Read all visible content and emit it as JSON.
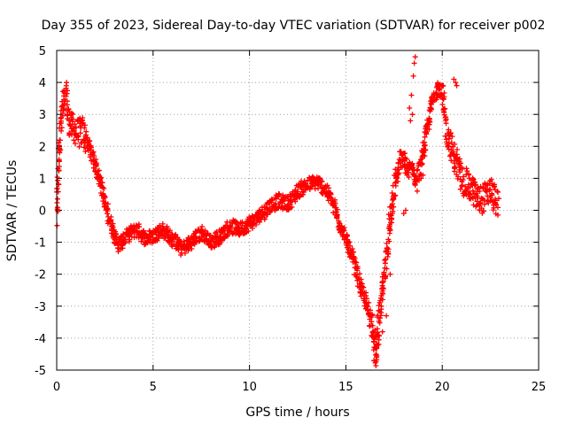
{
  "chart_data": {
    "type": "scatter",
    "title": "Day 355 of 2023, Sidereal Day-to-day VTEC variation (SDTVAR) for receiver p002",
    "xlabel": "GPS time / hours",
    "ylabel": "SDTVAR / TECUs",
    "xlim": [
      0,
      25
    ],
    "ylim": [
      -5,
      5
    ],
    "xticks": [
      0,
      5,
      10,
      15,
      20,
      25
    ],
    "yticks": [
      -5,
      -4,
      -3,
      -2,
      -1,
      0,
      1,
      2,
      3,
      4,
      5
    ],
    "grid": true,
    "marker": "plus",
    "color": "#ff0000",
    "series": [
      {
        "name": "SDTVAR",
        "anchors": [
          [
            0.0,
            -0.3
          ],
          [
            0.05,
            0.6
          ],
          [
            0.1,
            1.9
          ],
          [
            0.2,
            2.5
          ],
          [
            0.3,
            3.1
          ],
          [
            0.4,
            3.4
          ],
          [
            0.5,
            3.6
          ],
          [
            0.6,
            2.9
          ],
          [
            0.8,
            2.6
          ],
          [
            1.1,
            2.4
          ],
          [
            1.3,
            2.5
          ],
          [
            1.5,
            2.3
          ],
          [
            1.8,
            1.8
          ],
          [
            2.0,
            1.4
          ],
          [
            2.3,
            0.9
          ],
          [
            2.5,
            0.2
          ],
          [
            2.8,
            -0.4
          ],
          [
            3.0,
            -0.8
          ],
          [
            3.2,
            -1.1
          ],
          [
            3.5,
            -0.9
          ],
          [
            3.8,
            -0.7
          ],
          [
            4.2,
            -0.6
          ],
          [
            4.6,
            -0.9
          ],
          [
            5.0,
            -0.8
          ],
          [
            5.5,
            -0.6
          ],
          [
            6.0,
            -0.9
          ],
          [
            6.5,
            -1.2
          ],
          [
            7.0,
            -1.0
          ],
          [
            7.5,
            -0.7
          ],
          [
            8.0,
            -1.0
          ],
          [
            8.5,
            -0.8
          ],
          [
            9.0,
            -0.5
          ],
          [
            9.5,
            -0.6
          ],
          [
            10.0,
            -0.4
          ],
          [
            10.5,
            -0.2
          ],
          [
            11.0,
            0.1
          ],
          [
            11.5,
            0.3
          ],
          [
            12.0,
            0.2
          ],
          [
            12.5,
            0.6
          ],
          [
            13.0,
            0.8
          ],
          [
            13.5,
            0.9
          ],
          [
            14.0,
            0.6
          ],
          [
            14.3,
            0.3
          ],
          [
            14.6,
            -0.3
          ],
          [
            15.0,
            -0.9
          ],
          [
            15.3,
            -1.4
          ],
          [
            15.6,
            -2.0
          ],
          [
            15.9,
            -2.7
          ],
          [
            16.2,
            -3.2
          ],
          [
            16.4,
            -3.6
          ],
          [
            16.5,
            -4.4
          ],
          [
            16.55,
            -4.8
          ],
          [
            16.6,
            -4.2
          ],
          [
            16.7,
            -3.5
          ],
          [
            16.8,
            -3.0
          ],
          [
            17.0,
            -2.2
          ],
          [
            17.2,
            -0.8
          ],
          [
            17.4,
            0.3
          ],
          [
            17.6,
            1.0
          ],
          [
            17.8,
            1.5
          ],
          [
            18.0,
            1.6
          ],
          [
            18.2,
            1.2
          ],
          [
            18.4,
            1.4
          ],
          [
            18.6,
            0.9
          ],
          [
            18.8,
            1.2
          ],
          [
            19.0,
            1.8
          ],
          [
            19.2,
            2.5
          ],
          [
            19.5,
            3.5
          ],
          [
            19.8,
            3.9
          ],
          [
            20.0,
            3.6
          ],
          [
            20.2,
            2.6
          ],
          [
            20.4,
            2.1
          ],
          [
            20.6,
            1.7
          ],
          [
            20.8,
            1.4
          ],
          [
            21.0,
            1.0
          ],
          [
            21.3,
            0.8
          ],
          [
            21.6,
            0.6
          ],
          [
            21.9,
            0.3
          ],
          [
            22.2,
            0.4
          ],
          [
            22.5,
            0.6
          ],
          [
            22.8,
            0.3
          ],
          [
            22.9,
            0.0
          ]
        ],
        "extra_points": [
          [
            18.3,
            3.2
          ],
          [
            18.4,
            3.6
          ],
          [
            18.5,
            4.2
          ],
          [
            18.55,
            4.6
          ],
          [
            18.6,
            4.8
          ],
          [
            18.45,
            3.0
          ],
          [
            18.35,
            2.8
          ],
          [
            20.6,
            4.1
          ],
          [
            20.7,
            4.0
          ],
          [
            20.75,
            3.9
          ],
          [
            19.0,
            1.1
          ],
          [
            18.9,
            1.0
          ],
          [
            18.7,
            0.6
          ],
          [
            18.1,
            0.0
          ],
          [
            18.0,
            -0.1
          ],
          [
            12.2,
            0.1
          ],
          [
            12.4,
            0.5
          ],
          [
            16.9,
            -3.8
          ],
          [
            17.1,
            -3.3
          ],
          [
            17.3,
            -2.0
          ]
        ]
      }
    ]
  }
}
